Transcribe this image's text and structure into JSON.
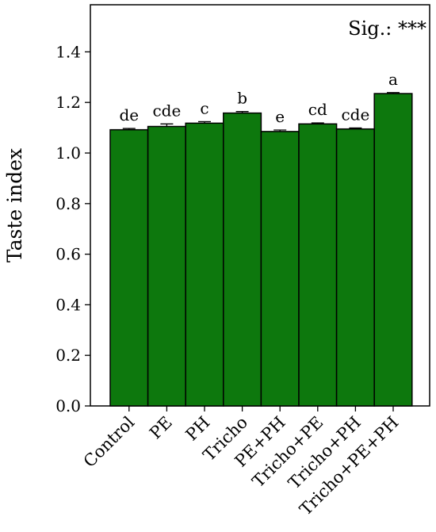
{
  "chart_data": {
    "type": "bar",
    "title": "",
    "xlabel": "",
    "ylabel": "Taste index",
    "ylim": [
      0.0,
      1.55
    ],
    "yticks": [
      "0.0",
      "0.2",
      "0.4",
      "0.6",
      "0.8",
      "1.0",
      "1.2",
      "1.4"
    ],
    "categories": [
      "Control",
      "PE",
      "PH",
      "Tricho",
      "PE+PH",
      "Tricho+PE",
      "Tricho+PH",
      "Tricho+PE+PH"
    ],
    "values": [
      1.092,
      1.105,
      1.118,
      1.158,
      1.085,
      1.115,
      1.095,
      1.235
    ],
    "errors": [
      0.005,
      0.01,
      0.006,
      0.006,
      0.006,
      0.004,
      0.004,
      0.004
    ],
    "significance_letters": [
      "de",
      "cde",
      "c",
      "b",
      "e",
      "cd",
      "cde",
      "a"
    ],
    "significance_note": "Sig.: ***",
    "bar_color": "#0d780d",
    "grid": false,
    "legend": "none"
  }
}
